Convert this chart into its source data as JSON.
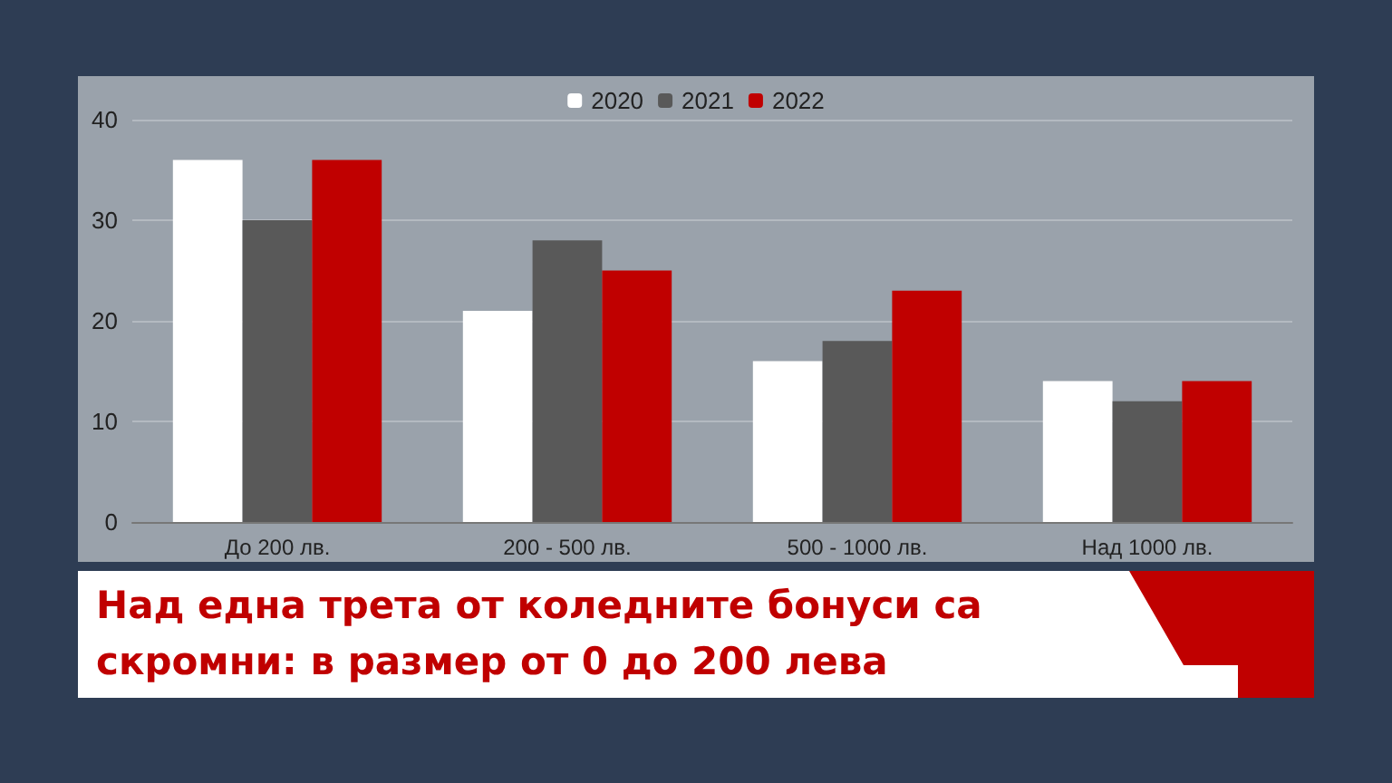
{
  "chart_data": {
    "type": "bar",
    "title": "Над една трета от коледните бонуси са скромни: в размер от 0 до 200 лева",
    "categories": [
      "До 200 лв.",
      "200 - 500 лв.",
      "500 - 1000 лв.",
      "Над 1000 лв."
    ],
    "series": [
      {
        "name": "2020",
        "color": "#ffffff",
        "values": [
          36,
          21,
          16,
          14
        ]
      },
      {
        "name": "2021",
        "color": "#595959",
        "values": [
          30,
          28,
          18,
          12
        ]
      },
      {
        "name": "2022",
        "color": "#c00000",
        "values": [
          36,
          25,
          23,
          14
        ]
      }
    ],
    "ylim": [
      0,
      40
    ],
    "yticks": [
      0,
      10,
      20,
      30,
      40
    ],
    "grid": "y",
    "legend": "top"
  }
}
